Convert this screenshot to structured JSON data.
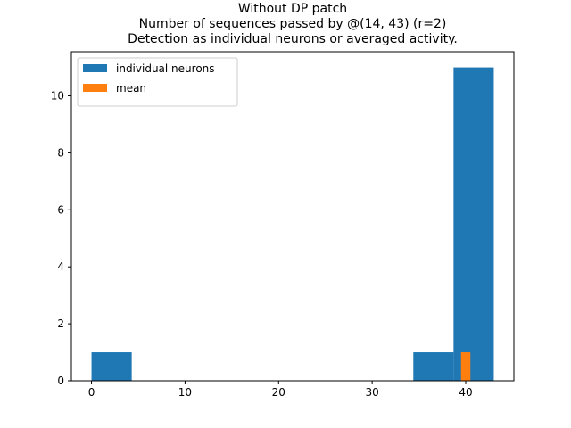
{
  "chart_data": {
    "type": "bar",
    "title": [
      "Without DP patch",
      "Number of sequences passed by @(14, 43) (r=2)",
      "Detection as individual neurons or averaged activity."
    ],
    "xlabel": "",
    "ylabel": "",
    "xlim": [
      -2.15,
      45.15
    ],
    "ylim": [
      0,
      11.55
    ],
    "xticks": [
      0,
      10,
      20,
      30,
      40
    ],
    "yticks": [
      0,
      2,
      4,
      6,
      8,
      10
    ],
    "grid": false,
    "legend_position": "upper-left",
    "series": [
      {
        "name": "individual neurons",
        "color": "#1f77b4",
        "bins": [
          {
            "x0": 0.0,
            "x1": 4.3,
            "count": 1
          },
          {
            "x0": 4.3,
            "x1": 8.6,
            "count": 0
          },
          {
            "x0": 8.6,
            "x1": 12.9,
            "count": 0
          },
          {
            "x0": 12.9,
            "x1": 17.2,
            "count": 0
          },
          {
            "x0": 17.2,
            "x1": 21.5,
            "count": 0
          },
          {
            "x0": 21.5,
            "x1": 25.8,
            "count": 0
          },
          {
            "x0": 25.8,
            "x1": 30.1,
            "count": 0
          },
          {
            "x0": 30.1,
            "x1": 34.4,
            "count": 0
          },
          {
            "x0": 34.4,
            "x1": 38.7,
            "count": 1
          },
          {
            "x0": 38.7,
            "x1": 43.0,
            "count": 11
          }
        ]
      },
      {
        "name": "mean",
        "color": "#ff7f0e",
        "bins": [
          {
            "x0": 39.5,
            "x1": 40.5,
            "count": 1
          }
        ]
      }
    ]
  }
}
